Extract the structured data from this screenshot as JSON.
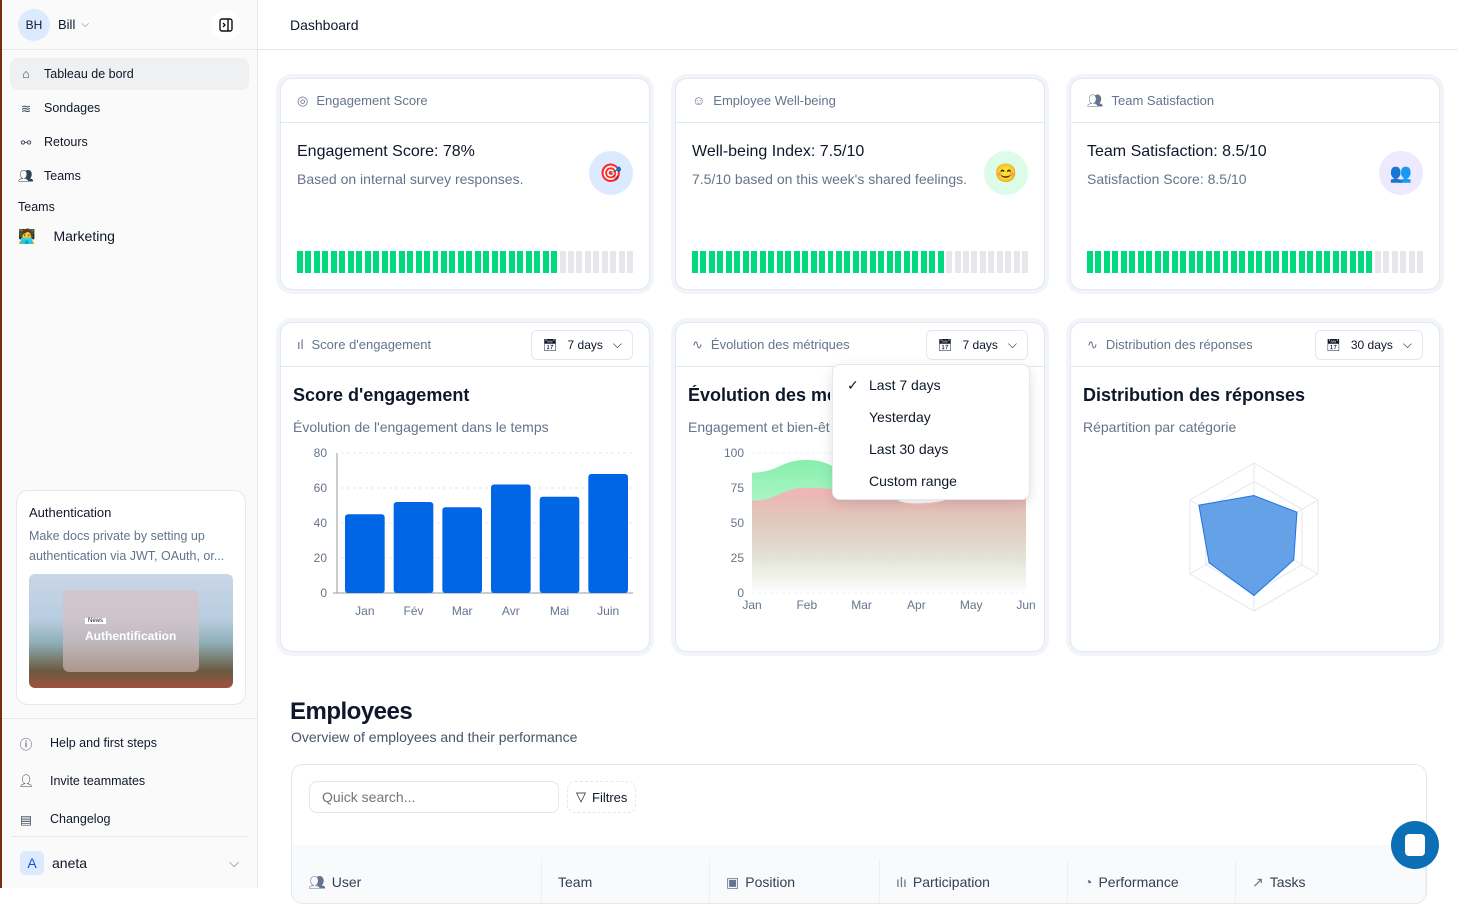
{
  "sidebar": {
    "user": {
      "initials": "BH",
      "name": "Bill"
    },
    "items": [
      {
        "label": "Tableau de bord",
        "icon": "home-icon"
      },
      {
        "label": "Sondages",
        "icon": "layers-icon"
      },
      {
        "label": "Retours",
        "icon": "plug-icon"
      },
      {
        "label": "Teams",
        "icon": "users-icon"
      }
    ],
    "teams_heading": "Teams",
    "teams": [
      {
        "label": "Marketing",
        "icon": "technologist-emoji"
      }
    ],
    "promo": {
      "title": "Authentication",
      "text": "Make docs private by setting up authentication via JWT, OAuth, or...",
      "image_badge": "News",
      "image_title": "Authentification"
    },
    "footer": [
      {
        "label": "Help and first steps",
        "icon": "help-icon"
      },
      {
        "label": "Invite teammates",
        "icon": "user-plus-icon"
      },
      {
        "label": "Changelog",
        "icon": "newspaper-icon"
      }
    ],
    "account": {
      "initial": "A",
      "name": "aneta"
    }
  },
  "header": {
    "title": "Dashboard"
  },
  "kpis": [
    {
      "header": "Engagement Score",
      "title": "Engagement Score: 78%",
      "subtitle": "Based on internal survey responses.",
      "emoji": "🎯",
      "progress": 0.78,
      "icon": "target-icon"
    },
    {
      "header": "Employee Well-being",
      "title": "Well-being Index: 7.5/10",
      "subtitle": "7.5/10 based on this week's shared feelings.",
      "emoji": "😊",
      "progress": 0.75,
      "icon": "smile-icon"
    },
    {
      "header": "Team Satisfaction",
      "title": "Team Satisfaction: 8.5/10",
      "subtitle": "Satisfaction Score: 8.5/10",
      "emoji": "👥",
      "progress": 0.85,
      "icon": "users-icon"
    }
  ],
  "charts": [
    {
      "header": "Score d'engagement",
      "range": "7 days",
      "title": "Score d'engagement",
      "subtitle": "Évolution de l'engagement dans le temps"
    },
    {
      "header": "Évolution des métriques",
      "range": "7 days",
      "title": "Évolution des métriques",
      "subtitle": "Engagement et bien-être"
    },
    {
      "header": "Distribution des réponses",
      "range": "30 days",
      "title": "Distribution des réponses",
      "subtitle": "Répartition par catégorie"
    }
  ],
  "range_menu": {
    "options": [
      "Last 7 days",
      "Yesterday",
      "Last 30 days",
      "Custom range"
    ],
    "selected": "Last 7 days"
  },
  "chart_data": [
    {
      "type": "bar",
      "categories": [
        "Jan",
        "Fév",
        "Mar",
        "Avr",
        "Mai",
        "Juin"
      ],
      "values": [
        45,
        52,
        49,
        62,
        55,
        68
      ],
      "ylim": [
        0,
        80
      ],
      "yticks": [
        "0",
        "20",
        "40",
        "60",
        "80"
      ],
      "grid": true,
      "color": "#0066e6"
    },
    {
      "type": "area",
      "categories": [
        "Jan",
        "Feb",
        "Mar",
        "Apr",
        "May",
        "Jun"
      ],
      "series": [
        {
          "values": [
            86,
            95,
            85,
            62,
            70,
            70
          ],
          "color": "#86efac"
        },
        {
          "values": [
            66,
            75,
            73,
            64,
            68,
            68
          ],
          "color": "#f2b4b4"
        }
      ],
      "ylim": [
        0,
        100
      ],
      "yticks": [
        "0",
        "25",
        "50",
        "75",
        "100"
      ]
    },
    {
      "type": "radar",
      "values": [
        56,
        67,
        62,
        79,
        70,
        86
      ],
      "max": 100,
      "color": "#4a90e2"
    }
  ],
  "employees": {
    "title": "Employees",
    "subtitle": "Overview of employees and their performance",
    "search_placeholder": "Quick search...",
    "filter_label": "Filtres",
    "columns": [
      {
        "label": "User",
        "icon": "users-icon"
      },
      {
        "label": "Team",
        "icon": ""
      },
      {
        "label": "Position",
        "icon": "briefcase-icon"
      },
      {
        "label": "Participation",
        "icon": "bar-chart-icon"
      },
      {
        "label": "Performance",
        "icon": "pie-chart-icon"
      },
      {
        "label": "Tasks",
        "icon": "trending-up-icon"
      }
    ]
  }
}
